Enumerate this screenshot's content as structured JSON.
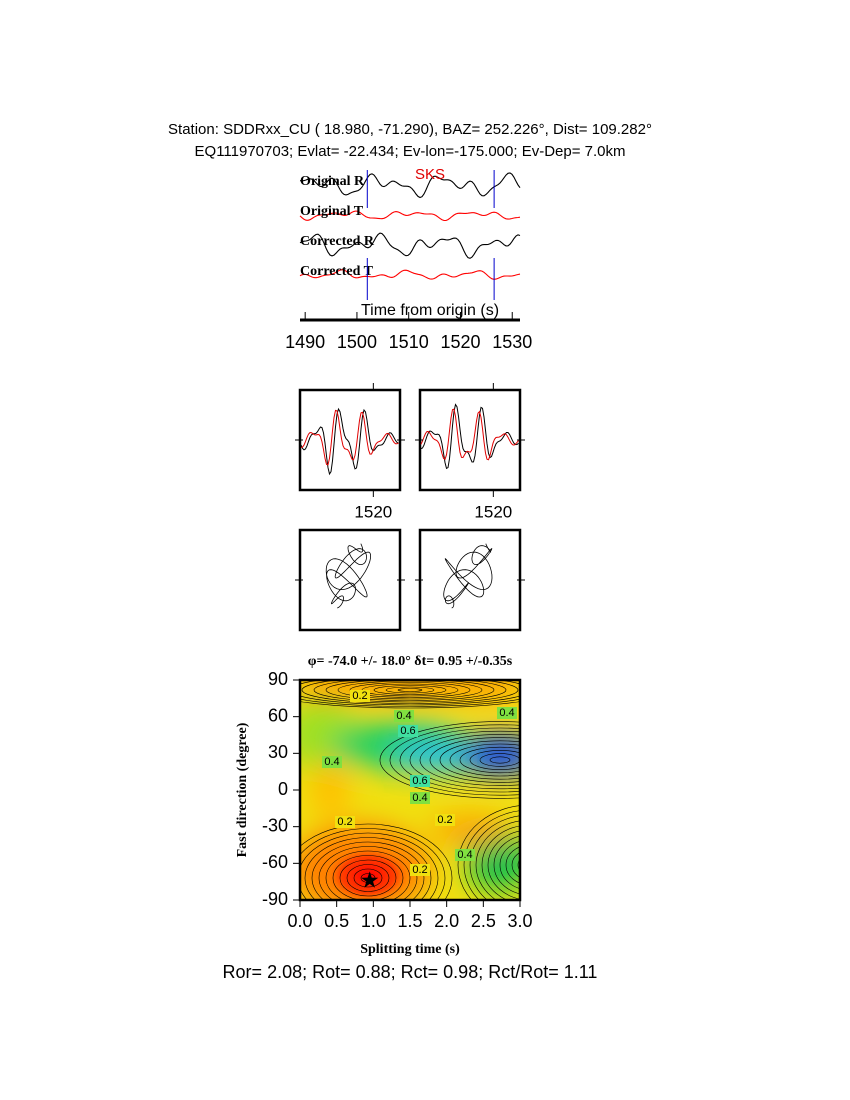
{
  "chart_data": [
    {
      "type": "header",
      "line1": "Station: SDDRxx_CU (  18.980,  -71.290), BAZ=  252.226°, Dist=  109.282°",
      "line2": "EQ111970703; Evlat= -22.434; Ev-lon=-175.000; Ev-Dep=  7.0km"
    },
    {
      "type": "seismogram",
      "traces": [
        {
          "name": "Original R",
          "color": "#000000"
        },
        {
          "name": "Original T",
          "color": "#ff0000"
        },
        {
          "name": "Corrected R",
          "color": "#000000"
        },
        {
          "name": "Corrected T",
          "color": "#ff0000"
        }
      ],
      "phase": "SKS",
      "xlabel": "Time from origin (s)",
      "xlim": [
        1489,
        1531.5
      ],
      "xticks": [
        1490,
        1500,
        1510,
        1520,
        1530
      ],
      "window": [
        1502,
        1526.5
      ]
    },
    {
      "type": "waveform-panels",
      "xlim": [
        1509,
        1524
      ],
      "xticks": [
        1520
      ],
      "panels": 2
    },
    {
      "type": "contour",
      "title": "φ= -74.0 +/- 18.0° δt= 0.95 +/-0.35s",
      "xlabel": "Splitting time (s)",
      "ylabel": "Fast direction (degree)",
      "xlim": [
        0,
        3
      ],
      "ylim": [
        -90,
        90
      ],
      "xticks": [
        {
          "value": 0,
          "label": "0.0"
        },
        0.5,
        {
          "value": 1,
          "label": "1.0"
        },
        1.5,
        {
          "value": 2,
          "label": "2.0"
        },
        2.5,
        {
          "value": 3,
          "label": "3.0"
        }
      ],
      "yticks": [
        -90,
        -60,
        -30,
        0,
        30,
        60,
        90
      ],
      "best": {
        "x": 0.95,
        "y": -74
      },
      "contour_labels": [
        0.2,
        0.4,
        0.6,
        0.4,
        0.4,
        0.6,
        0.4,
        0.2,
        0.2,
        0.4,
        0.2
      ]
    },
    {
      "type": "footer",
      "text": "Ror= 2.08; Rot= 0.88; Rct= 0.98; Rct/Rot= 1.11"
    }
  ]
}
